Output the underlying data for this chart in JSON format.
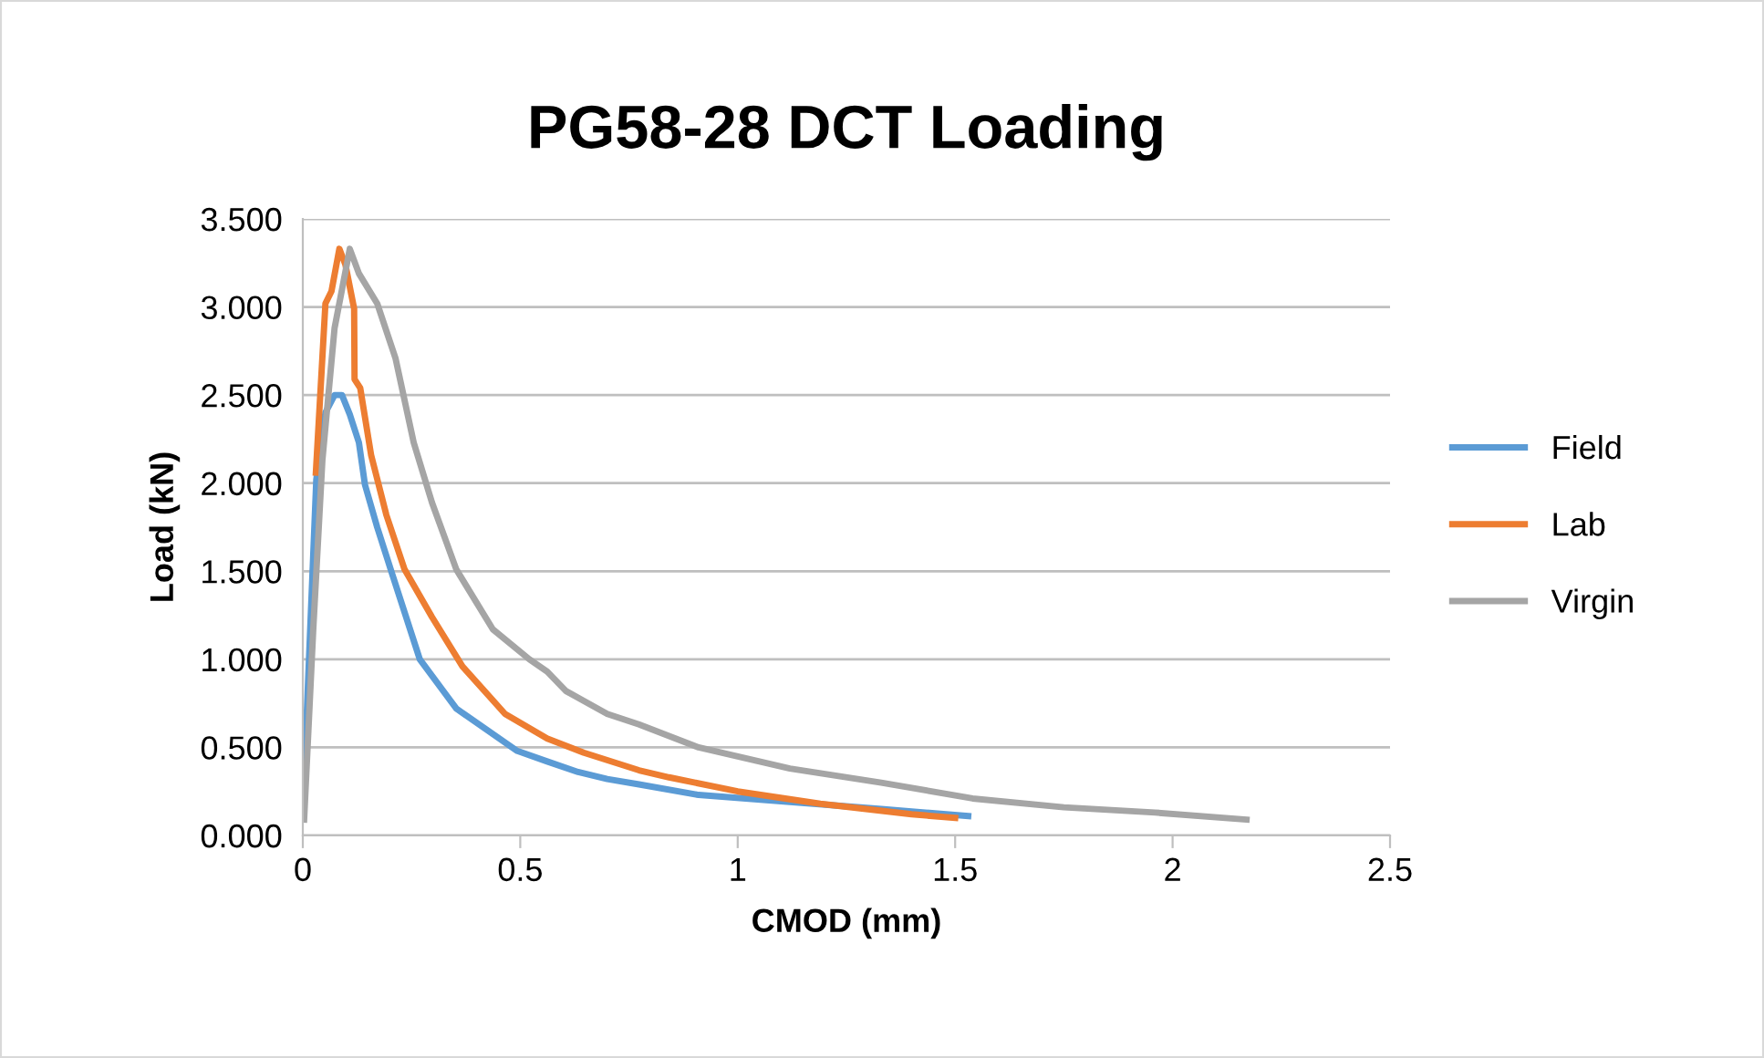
{
  "chart_data": {
    "type": "line",
    "title": "PG58-28 DCT Loading",
    "xlabel": "CMOD (mm)",
    "ylabel": "Load (kN)",
    "xlim": [
      0,
      2.5
    ],
    "xticks": [
      0,
      0.5,
      1,
      1.5,
      2,
      2.5
    ],
    "ylim": [
      0,
      3.5
    ],
    "yticks": [
      {
        "value": 0,
        "label": "0.000"
      },
      {
        "value": 0.5,
        "label": "0.500"
      },
      {
        "value": 1,
        "label": "1.000"
      },
      {
        "value": 1.5,
        "label": "1.500"
      },
      {
        "value": 2,
        "label": "2.000"
      },
      {
        "value": 2.5,
        "label": "2.500"
      },
      {
        "value": 3,
        "label": "3.000"
      },
      {
        "value": 3.5,
        "label": "3.500"
      }
    ],
    "grid": "y",
    "legend": "right",
    "marker": "none",
    "line_style": "solid",
    "series": [
      {
        "name": "Field",
        "color": "#5b9bd5",
        "x": [
          0,
          0.031,
          0.052,
          0.073,
          0.09,
          0.108,
          0.129,
          0.143,
          0.171,
          0.206,
          0.269,
          0.353,
          0.493,
          0.562,
          0.633,
          0.7,
          0.773,
          0.91,
          1.12,
          1.33,
          1.53
        ],
        "values": [
          0.14,
          2.02,
          2.4,
          2.5,
          2.5,
          2.39,
          2.23,
          1.99,
          1.75,
          1.48,
          1.0,
          0.72,
          0.48,
          0.42,
          0.36,
          0.32,
          0.29,
          0.23,
          0.19,
          0.15,
          0.11
        ]
      },
      {
        "name": "Lab",
        "color": "#ed7d31",
        "x": [
          0.03,
          0.052,
          0.066,
          0.084,
          0.098,
          0.118,
          0.119,
          0.132,
          0.157,
          0.192,
          0.234,
          0.297,
          0.367,
          0.465,
          0.562,
          0.646,
          0.773,
          0.842,
          1.0,
          1.19,
          1.4,
          1.5
        ],
        "values": [
          2.06,
          3.02,
          3.09,
          3.33,
          3.24,
          2.99,
          2.59,
          2.54,
          2.16,
          1.82,
          1.51,
          1.24,
          0.96,
          0.69,
          0.55,
          0.47,
          0.37,
          0.33,
          0.25,
          0.18,
          0.12,
          0.1
        ]
      },
      {
        "name": "Virgin",
        "color": "#a5a5a5",
        "x": [
          0.003,
          0.024,
          0.045,
          0.073,
          0.108,
          0.129,
          0.171,
          0.213,
          0.255,
          0.297,
          0.353,
          0.437,
          0.521,
          0.562,
          0.605,
          0.7,
          0.773,
          0.91,
          1.12,
          1.33,
          1.54,
          1.75,
          1.96,
          2.17
        ],
        "values": [
          0.09,
          1.17,
          2.13,
          2.88,
          3.33,
          3.19,
          3.02,
          2.71,
          2.23,
          1.89,
          1.51,
          1.17,
          1.0,
          0.93,
          0.82,
          0.69,
          0.63,
          0.5,
          0.38,
          0.3,
          0.21,
          0.16,
          0.13,
          0.09
        ]
      }
    ]
  }
}
